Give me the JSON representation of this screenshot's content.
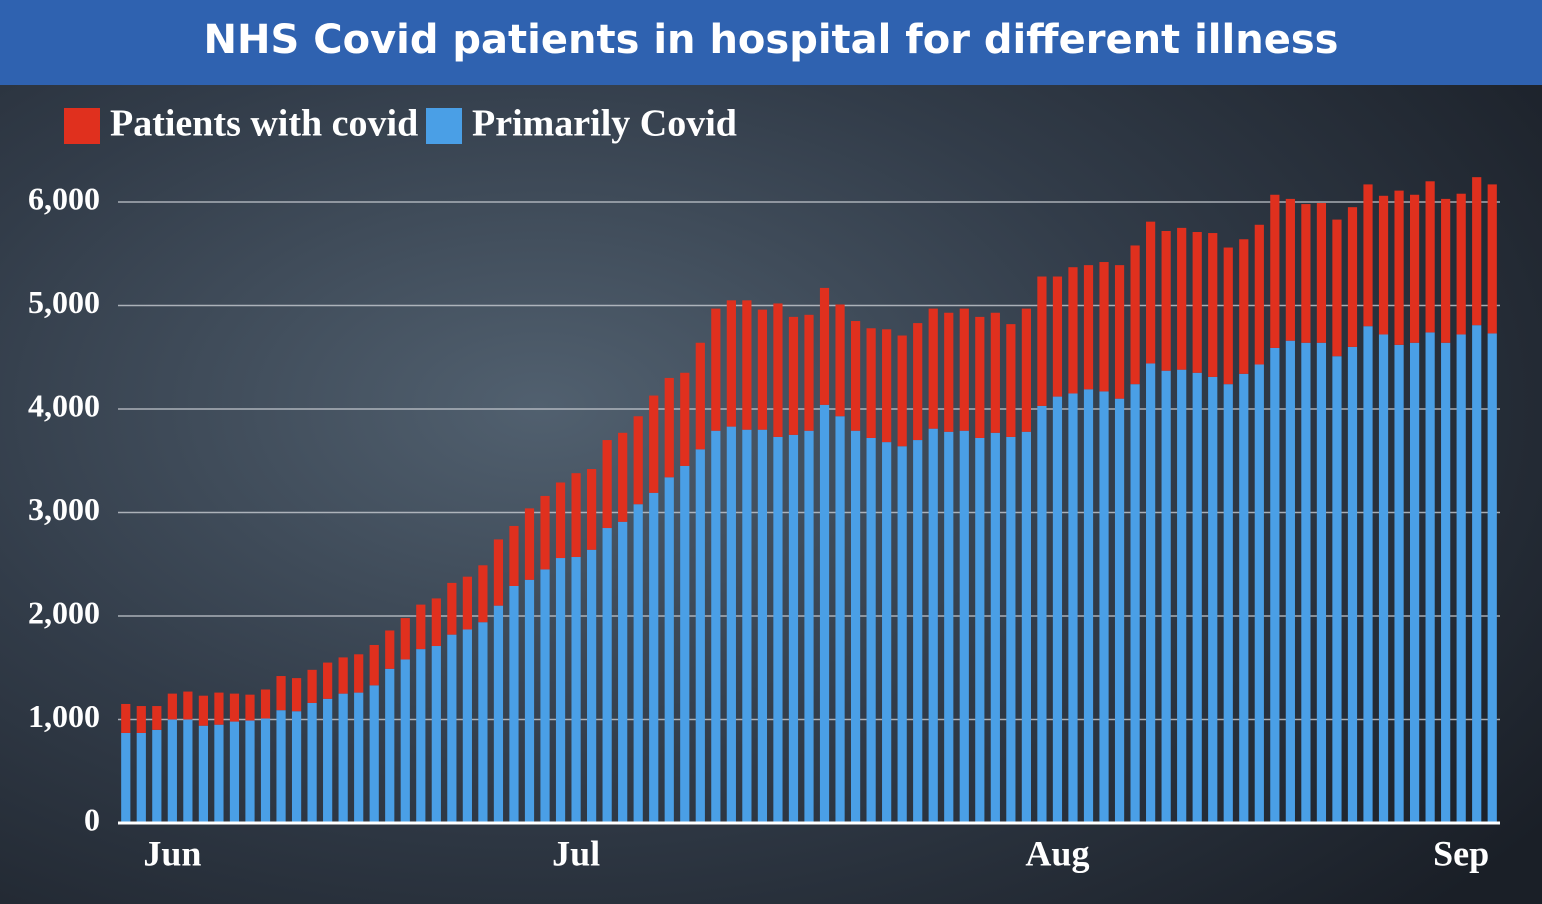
{
  "chart_data": {
    "type": "stacked_bar",
    "title": "NHS Covid patients in hospital for different illness",
    "categories": [
      null,
      null,
      null,
      "Jun",
      null,
      null,
      null,
      null,
      null,
      null,
      null,
      null,
      null,
      null,
      null,
      null,
      null,
      null,
      null,
      null,
      null,
      null,
      null,
      null,
      null,
      null,
      null,
      null,
      null,
      "Jul",
      null,
      null,
      null,
      null,
      null,
      null,
      null,
      null,
      null,
      null,
      null,
      null,
      null,
      null,
      null,
      null,
      null,
      null,
      null,
      null,
      null,
      null,
      null,
      null,
      null,
      null,
      null,
      null,
      null,
      null,
      "Aug",
      null,
      null,
      null,
      null,
      null,
      null,
      null,
      null,
      null,
      null,
      null,
      null,
      null,
      null,
      null,
      null,
      null,
      null,
      null,
      null,
      null,
      null,
      null,
      null,
      null,
      "Sep",
      null,
      null
    ],
    "series": [
      {
        "name": "Primarily Covid",
        "color": "#4a9fe6",
        "values": [
          870,
          870,
          900,
          1000,
          1000,
          940,
          950,
          980,
          990,
          1010,
          1090,
          1080,
          1160,
          1200,
          1250,
          1260,
          1330,
          1490,
          1580,
          1680,
          1710,
          1820,
          1870,
          1940,
          2100,
          2290,
          2350,
          2450,
          2560,
          2570,
          2640,
          2850,
          2910,
          3080,
          3190,
          3340,
          3450,
          3610,
          3790,
          3830,
          3800,
          3800,
          3730,
          3750,
          3790,
          4040,
          3930,
          3790,
          3720,
          3680,
          3640,
          3700,
          3810,
          3780,
          3790,
          3720,
          3770,
          3730,
          3780,
          4030,
          4120,
          4150,
          4190,
          4170,
          4100,
          4240,
          4440,
          4370,
          4380,
          4350,
          4310,
          4240,
          4340,
          4430,
          4590,
          4660,
          4640,
          4640,
          4510,
          4600,
          4800,
          4720,
          4620,
          4640,
          4740,
          4640,
          4720,
          4810,
          4730
        ]
      },
      {
        "name": "Patients with covid",
        "color": "#e0301e",
        "values": [
          280,
          260,
          230,
          250,
          270,
          290,
          310,
          270,
          250,
          280,
          330,
          320,
          320,
          350,
          350,
          370,
          390,
          370,
          400,
          430,
          460,
          500,
          510,
          550,
          640,
          580,
          690,
          710,
          730,
          810,
          780,
          850,
          860,
          850,
          940,
          960,
          900,
          1030,
          1180,
          1220,
          1250,
          1160,
          1290,
          1140,
          1120,
          1130,
          1080,
          1060,
          1060,
          1090,
          1070,
          1130,
          1160,
          1150,
          1180,
          1170,
          1160,
          1090,
          1190,
          1250,
          1160,
          1220,
          1200,
          1250,
          1290,
          1340,
          1370,
          1350,
          1370,
          1360,
          1390,
          1320,
          1300,
          1350,
          1480,
          1370,
          1340,
          1350,
          1320,
          1350,
          1370,
          1340,
          1490,
          1430,
          1460,
          1390,
          1360,
          1430,
          1440
        ]
      }
    ],
    "legend_order": [
      1,
      0
    ],
    "ylim": [
      0,
      6000
    ],
    "yticks": [
      0,
      {
        "value": 1000,
        "label": "1,000"
      },
      {
        "value": 2000,
        "label": "2,000"
      },
      {
        "value": 3000,
        "label": "3,000"
      },
      {
        "value": 4000,
        "label": "4,000"
      },
      {
        "value": 5000,
        "label": "5,000"
      },
      {
        "value": 6000,
        "label": "6,000"
      }
    ],
    "grid": true
  }
}
